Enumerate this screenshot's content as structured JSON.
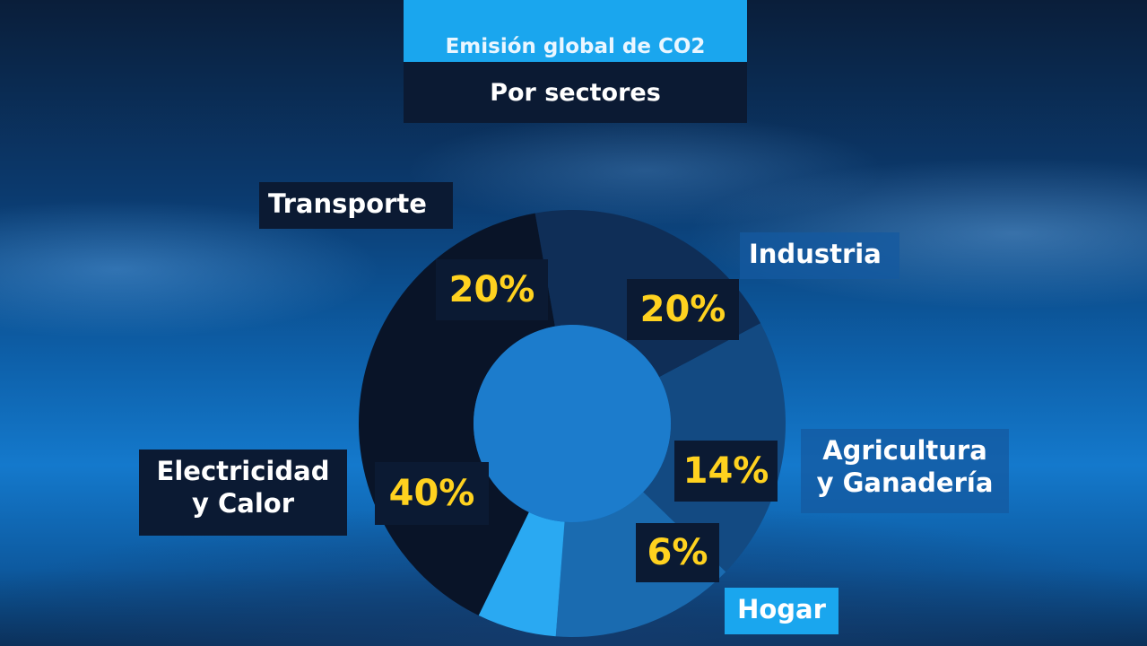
{
  "header": {
    "title": "Emisión global de CO2",
    "subtitle": "Por sectores"
  },
  "chart_data": {
    "type": "pie",
    "title": "Emisión global de CO2",
    "subtitle": "Por sectores",
    "unit": "%",
    "categories": [
      "Transporte",
      "Industria",
      "Agricultura y Ganadería",
      "Hogar",
      "Electricidad y Calor"
    ],
    "values": [
      20,
      20,
      14,
      6,
      40
    ],
    "value_labels": [
      "20%",
      "20%",
      "14%",
      "6%",
      "40%"
    ],
    "colors": [
      "#0f2e57",
      "#134a82",
      "#1a6bb0",
      "#2aa9f2",
      "#091428"
    ],
    "donut": true
  },
  "labels": {
    "transporte": "Transporte",
    "industria": "Industria",
    "agricultura_line1": "Agricultura",
    "agricultura_line2": "y Ganadería",
    "hogar": "Hogar",
    "electricidad_line1": "Electricidad",
    "electricidad_line2": "y Calor"
  }
}
